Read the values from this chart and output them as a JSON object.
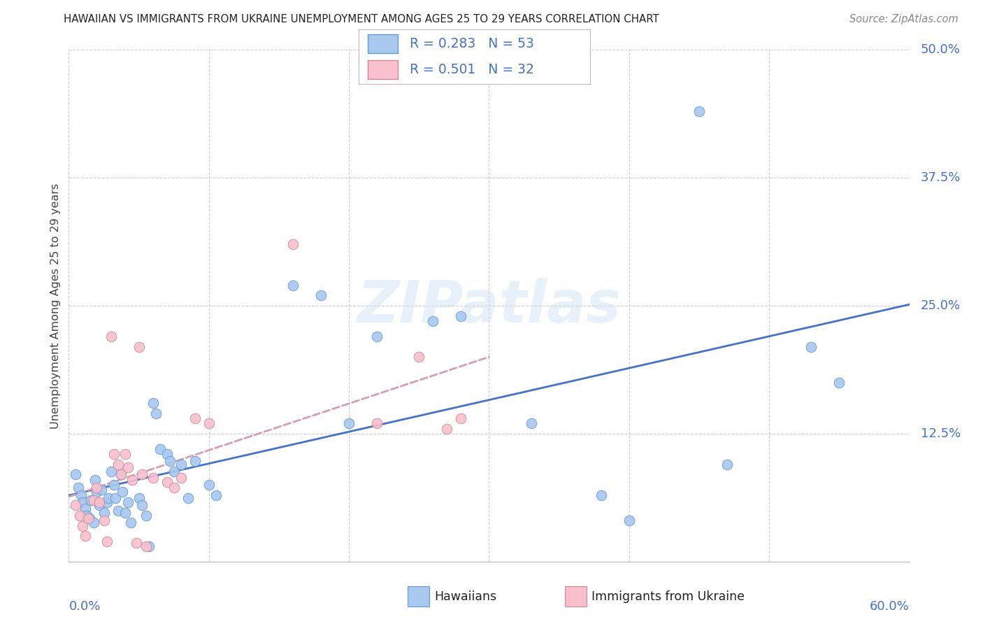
{
  "title": "HAWAIIAN VS IMMIGRANTS FROM UKRAINE UNEMPLOYMENT AMONG AGES 25 TO 29 YEARS CORRELATION CHART",
  "source": "Source: ZipAtlas.com",
  "ylabel": "Unemployment Among Ages 25 to 29 years",
  "xlim": [
    0.0,
    0.6
  ],
  "ylim": [
    0.0,
    0.5
  ],
  "watermark": "ZIPatlas",
  "hawaiian_face_color": "#a8c8f0",
  "hawaiian_edge_color": "#6699cc",
  "ukraine_face_color": "#f8c0cc",
  "ukraine_edge_color": "#cc8899",
  "hawaiian_line_color": "#4472c4",
  "ukraine_line_color": "#d4a0b0",
  "grid_color": "#cccccc",
  "legend_color": "#4472c4",
  "ytick_vals": [
    0.125,
    0.25,
    0.375,
    0.5
  ],
  "ytick_labels": [
    "12.5%",
    "25.0%",
    "37.5%",
    "50.0%"
  ],
  "xtick_vals": [
    0.0,
    0.1,
    0.2,
    0.3,
    0.4,
    0.5,
    0.6
  ],
  "hawaiian_scatter": [
    [
      0.005,
      0.085
    ],
    [
      0.007,
      0.072
    ],
    [
      0.009,
      0.065
    ],
    [
      0.01,
      0.058
    ],
    [
      0.012,
      0.052
    ],
    [
      0.013,
      0.045
    ],
    [
      0.015,
      0.042
    ],
    [
      0.016,
      0.06
    ],
    [
      0.018,
      0.038
    ],
    [
      0.019,
      0.08
    ],
    [
      0.02,
      0.068
    ],
    [
      0.022,
      0.055
    ],
    [
      0.023,
      0.07
    ],
    [
      0.025,
      0.048
    ],
    [
      0.027,
      0.058
    ],
    [
      0.028,
      0.062
    ],
    [
      0.03,
      0.088
    ],
    [
      0.032,
      0.075
    ],
    [
      0.033,
      0.062
    ],
    [
      0.035,
      0.05
    ],
    [
      0.037,
      0.085
    ],
    [
      0.038,
      0.068
    ],
    [
      0.04,
      0.048
    ],
    [
      0.042,
      0.058
    ],
    [
      0.044,
      0.038
    ],
    [
      0.05,
      0.062
    ],
    [
      0.052,
      0.055
    ],
    [
      0.055,
      0.045
    ],
    [
      0.057,
      0.015
    ],
    [
      0.06,
      0.155
    ],
    [
      0.062,
      0.145
    ],
    [
      0.065,
      0.11
    ],
    [
      0.07,
      0.105
    ],
    [
      0.072,
      0.098
    ],
    [
      0.075,
      0.088
    ],
    [
      0.08,
      0.095
    ],
    [
      0.085,
      0.062
    ],
    [
      0.09,
      0.098
    ],
    [
      0.1,
      0.075
    ],
    [
      0.105,
      0.065
    ],
    [
      0.16,
      0.27
    ],
    [
      0.18,
      0.26
    ],
    [
      0.2,
      0.135
    ],
    [
      0.22,
      0.22
    ],
    [
      0.26,
      0.235
    ],
    [
      0.28,
      0.24
    ],
    [
      0.33,
      0.135
    ],
    [
      0.38,
      0.065
    ],
    [
      0.4,
      0.04
    ],
    [
      0.45,
      0.44
    ],
    [
      0.47,
      0.095
    ],
    [
      0.53,
      0.21
    ],
    [
      0.55,
      0.175
    ]
  ],
  "ukraine_scatter": [
    [
      0.005,
      0.055
    ],
    [
      0.008,
      0.045
    ],
    [
      0.01,
      0.035
    ],
    [
      0.012,
      0.025
    ],
    [
      0.014,
      0.042
    ],
    [
      0.018,
      0.06
    ],
    [
      0.02,
      0.072
    ],
    [
      0.022,
      0.058
    ],
    [
      0.025,
      0.04
    ],
    [
      0.027,
      0.02
    ],
    [
      0.03,
      0.22
    ],
    [
      0.032,
      0.105
    ],
    [
      0.035,
      0.095
    ],
    [
      0.037,
      0.085
    ],
    [
      0.04,
      0.105
    ],
    [
      0.042,
      0.092
    ],
    [
      0.045,
      0.08
    ],
    [
      0.048,
      0.018
    ],
    [
      0.05,
      0.21
    ],
    [
      0.052,
      0.085
    ],
    [
      0.055,
      0.015
    ],
    [
      0.06,
      0.082
    ],
    [
      0.07,
      0.078
    ],
    [
      0.075,
      0.072
    ],
    [
      0.08,
      0.082
    ],
    [
      0.09,
      0.14
    ],
    [
      0.1,
      0.135
    ],
    [
      0.16,
      0.31
    ],
    [
      0.22,
      0.135
    ],
    [
      0.25,
      0.2
    ],
    [
      0.27,
      0.13
    ],
    [
      0.28,
      0.14
    ]
  ]
}
